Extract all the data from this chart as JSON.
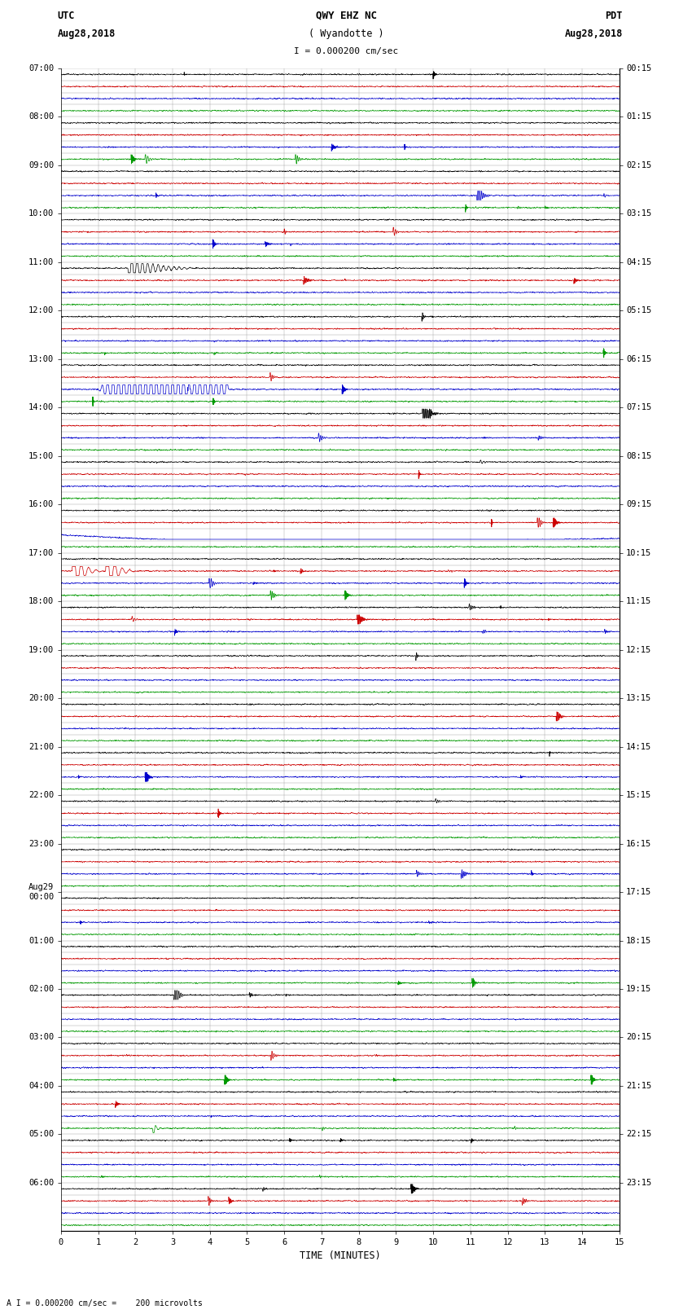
{
  "title_line1": "QWY EHZ NC",
  "title_line2": "( Wyandotte )",
  "scale_text": "I = 0.000200 cm/sec",
  "left_label_line1": "UTC",
  "left_label_line2": "Aug28,2018",
  "right_label_line1": "PDT",
  "right_label_line2": "Aug28,2018",
  "footer_text": "A I = 0.000200 cm/sec =    200 microvolts",
  "xlabel": "TIME (MINUTES)",
  "utc_labels": [
    "07:00",
    "08:00",
    "09:00",
    "10:00",
    "11:00",
    "12:00",
    "13:00",
    "14:00",
    "15:00",
    "16:00",
    "17:00",
    "18:00",
    "19:00",
    "20:00",
    "21:00",
    "22:00",
    "23:00",
    "Aug29\n00:00",
    "01:00",
    "02:00",
    "03:00",
    "04:00",
    "05:00",
    "06:00"
  ],
  "pdt_labels": [
    "00:15",
    "01:15",
    "02:15",
    "03:15",
    "04:15",
    "05:15",
    "06:15",
    "07:15",
    "08:15",
    "09:15",
    "10:15",
    "11:15",
    "12:15",
    "13:15",
    "14:15",
    "15:15",
    "16:15",
    "17:15",
    "18:15",
    "19:15",
    "20:15",
    "21:15",
    "22:15",
    "23:15"
  ],
  "n_hours": 24,
  "rows_per_hour": 4,
  "n_cols": 15,
  "bg_color": "#ffffff",
  "grid_color": "#888888",
  "line_color_black": "#000000",
  "line_color_blue": "#0000cc",
  "line_color_red": "#cc0000",
  "line_color_green": "#009900",
  "row_amp": 0.38,
  "noise_base": 0.04,
  "fig_width": 8.5,
  "fig_height": 16.13
}
